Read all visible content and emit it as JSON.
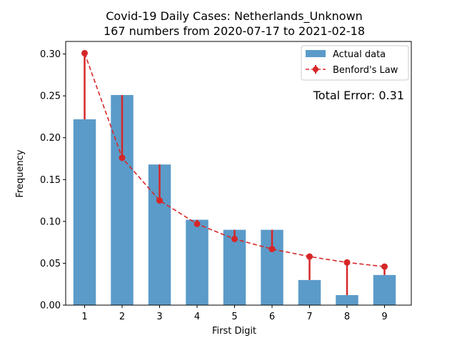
{
  "chart_data": {
    "type": "bar",
    "title": "Covid-19 Daily Cases: Netherlands_Unknown",
    "subtitle": "167 numbers from 2020-07-17 to 2021-02-18",
    "xlabel": "First Digit",
    "ylabel": "Frequency",
    "categories": [
      "1",
      "2",
      "3",
      "4",
      "5",
      "6",
      "7",
      "8",
      "9"
    ],
    "series": [
      {
        "name": "Actual data",
        "kind": "bar",
        "color": "#5b9bc9",
        "values": [
          0.222,
          0.251,
          0.168,
          0.102,
          0.09,
          0.09,
          0.03,
          0.012,
          0.036
        ]
      },
      {
        "name": "Benford's Law",
        "kind": "line-dashed-markers",
        "color": "#d62728",
        "values": [
          0.301,
          0.176,
          0.125,
          0.097,
          0.079,
          0.067,
          0.058,
          0.051,
          0.046
        ]
      }
    ],
    "ylim": [
      0,
      0.315
    ],
    "yticks": [
      "0.00",
      "0.05",
      "0.10",
      "0.15",
      "0.20",
      "0.25",
      "0.30"
    ],
    "legend_position": "top-right",
    "annotation": "Total Error: 0.31",
    "annotation_color": "#d62728",
    "grid": false
  }
}
